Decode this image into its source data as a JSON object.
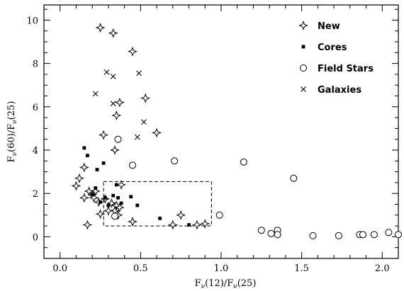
{
  "chart_data": {
    "type": "scatter",
    "title": "",
    "xlabel_parts": {
      "main": "F",
      "sub1": "ν",
      "mid": "(12)/F",
      "sub2": "ν",
      "end": "(25)"
    },
    "ylabel_parts": {
      "main": "F",
      "sub1": "ν",
      "mid": "(60)/F",
      "sub2": "ν",
      "end": "(25)"
    },
    "xlim": [
      -0.1,
      2.1
    ],
    "ylim": [
      -1,
      10.7
    ],
    "x_ticks": [
      0.0,
      0.5,
      1.0,
      1.5,
      2.0
    ],
    "x_tick_labels": [
      "0.0",
      "0.5",
      "1.0",
      "1.5",
      "2.0"
    ],
    "y_ticks": [
      0,
      2,
      4,
      6,
      8,
      10
    ],
    "y_tick_labels": [
      "0",
      "2",
      "4",
      "6",
      "8",
      "10"
    ],
    "legend_position": "top-right",
    "series": [
      {
        "name": "New",
        "marker": "star4",
        "points": [
          [
            0.25,
            9.65
          ],
          [
            0.33,
            9.4
          ],
          [
            0.45,
            8.55
          ],
          [
            0.53,
            6.4
          ],
          [
            0.6,
            4.8
          ],
          [
            0.37,
            6.2
          ],
          [
            0.35,
            5.6
          ],
          [
            0.34,
            4.0
          ],
          [
            0.27,
            4.7
          ],
          [
            0.15,
            3.2
          ],
          [
            0.12,
            2.7
          ],
          [
            0.1,
            2.35
          ],
          [
            0.15,
            1.8
          ],
          [
            0.2,
            1.95
          ],
          [
            0.22,
            2.1
          ],
          [
            0.18,
            2.1
          ],
          [
            0.21,
            1.8
          ],
          [
            0.28,
            1.75
          ],
          [
            0.32,
            1.55
          ],
          [
            0.34,
            1.2
          ],
          [
            0.35,
            1.45
          ],
          [
            0.38,
            2.4
          ],
          [
            0.3,
            1.2
          ],
          [
            0.25,
            1.05
          ],
          [
            0.17,
            0.55
          ],
          [
            0.45,
            0.7
          ],
          [
            0.75,
            1.0
          ],
          [
            0.7,
            0.55
          ],
          [
            0.85,
            0.55
          ],
          [
            0.9,
            0.6
          ],
          [
            0.37,
            1.35
          ],
          [
            0.36,
            1.0
          ],
          [
            0.24,
            1.6
          ]
        ]
      },
      {
        "name": "Cores",
        "marker": "square",
        "points": [
          [
            0.15,
            4.1
          ],
          [
            0.17,
            3.75
          ],
          [
            0.27,
            3.4
          ],
          [
            0.23,
            3.1
          ],
          [
            0.35,
            2.4
          ],
          [
            0.2,
            1.95
          ],
          [
            0.28,
            1.8
          ],
          [
            0.25,
            1.6
          ],
          [
            0.33,
            1.9
          ],
          [
            0.36,
            1.8
          ],
          [
            0.44,
            1.85
          ],
          [
            0.48,
            1.45
          ],
          [
            0.38,
            1.55
          ],
          [
            0.62,
            0.85
          ],
          [
            0.8,
            0.55
          ],
          [
            0.22,
            2.25
          ],
          [
            0.3,
            1.45
          ]
        ]
      },
      {
        "name": "Field Stars",
        "marker": "circle",
        "points": [
          [
            0.36,
            4.5
          ],
          [
            0.45,
            3.3
          ],
          [
            0.71,
            3.5
          ],
          [
            1.14,
            3.45
          ],
          [
            1.45,
            2.7
          ],
          [
            0.99,
            1.0
          ],
          [
            0.34,
            0.95
          ],
          [
            1.25,
            0.3
          ],
          [
            1.31,
            0.15
          ],
          [
            1.35,
            0.3
          ],
          [
            1.35,
            0.1
          ],
          [
            1.57,
            0.05
          ],
          [
            1.73,
            0.05
          ],
          [
            1.86,
            0.1
          ],
          [
            1.88,
            0.1
          ],
          [
            1.95,
            0.1
          ],
          [
            2.04,
            0.2
          ],
          [
            2.1,
            0.1
          ]
        ]
      },
      {
        "name": "Galaxies",
        "marker": "cross",
        "points": [
          [
            0.29,
            7.6
          ],
          [
            0.33,
            7.4
          ],
          [
            0.49,
            7.55
          ],
          [
            0.22,
            6.6
          ],
          [
            0.33,
            6.15
          ],
          [
            0.52,
            5.3
          ],
          [
            0.48,
            4.6
          ]
        ]
      }
    ],
    "box": {
      "x": [
        0.27,
        0.94
      ],
      "y": [
        0.5,
        2.55
      ]
    }
  }
}
